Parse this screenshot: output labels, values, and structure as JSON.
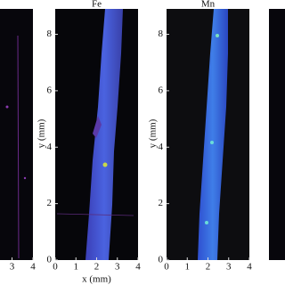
{
  "panels": [
    {
      "xticks": [
        3,
        4
      ]
    },
    {
      "title": "Fe",
      "xlabel": "x (mm)",
      "ylabel": "y (mm)",
      "xticks": [
        0,
        1,
        2,
        3,
        4
      ],
      "yticks": [
        0,
        2,
        4,
        6,
        8
      ]
    },
    {
      "title": "Mn",
      "ylabel": "y (mm)",
      "xticks": [
        0,
        1,
        2,
        3,
        4
      ],
      "yticks": [
        0,
        2,
        4,
        6,
        8
      ]
    },
    {}
  ]
}
